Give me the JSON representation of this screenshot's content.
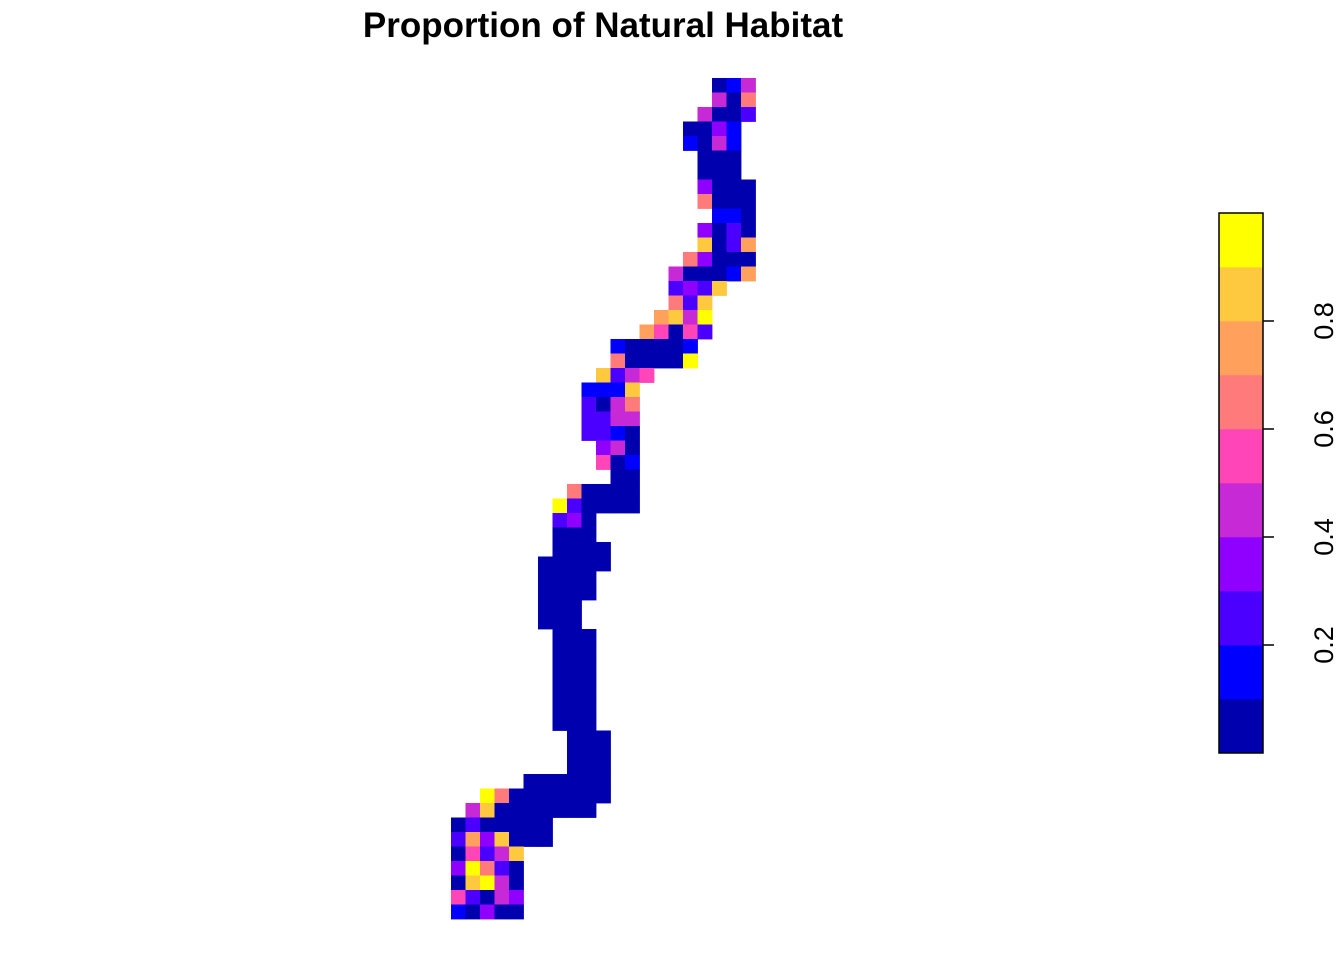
{
  "chart_data": {
    "type": "heatmap",
    "title": "Proportion of Natural Habitat",
    "xlabel": "",
    "ylabel": "",
    "axes_shown": false,
    "legend": {
      "placement": "right",
      "orientation": "vertical",
      "range": [
        0,
        1
      ],
      "ticks": [
        0.2,
        0.4,
        0.6,
        0.8
      ],
      "tick_labels": [
        "0.2",
        "0.4",
        "0.6",
        "0.8"
      ],
      "breaks": [
        0.0,
        0.1,
        0.2,
        0.3,
        0.4,
        0.5,
        0.6,
        0.7,
        0.8,
        0.9,
        1.0
      ],
      "colors": [
        "#0000AE",
        "#0000FF",
        "#4B00FF",
        "#8F00FF",
        "#C729D6",
        "#FF45B8",
        "#FF7A7A",
        "#FFA05C",
        "#FFC93F",
        "#FFFF00"
      ]
    },
    "raster": {
      "origin": "top-left",
      "n_cols": 21,
      "n_rows": 58,
      "cells": [
        [
          18,
          0,
          0.05
        ],
        [
          19,
          0,
          0.15
        ],
        [
          20,
          0,
          0.45
        ],
        [
          18,
          1,
          0.45
        ],
        [
          19,
          1,
          0.05
        ],
        [
          20,
          1,
          0.65
        ],
        [
          17,
          2,
          0.45
        ],
        [
          18,
          2,
          0.05
        ],
        [
          19,
          2,
          0.05
        ],
        [
          20,
          2,
          0.25
        ],
        [
          16,
          3,
          0.05
        ],
        [
          17,
          3,
          0.05
        ],
        [
          18,
          3,
          0.35
        ],
        [
          19,
          3,
          0.15
        ],
        [
          16,
          4,
          0.15
        ],
        [
          17,
          4,
          0.05
        ],
        [
          18,
          4,
          0.45
        ],
        [
          19,
          4,
          0.15
        ],
        [
          17,
          5,
          0.05
        ],
        [
          18,
          5,
          0.05
        ],
        [
          19,
          5,
          0.05
        ],
        [
          17,
          6,
          0.05
        ],
        [
          18,
          6,
          0.05
        ],
        [
          19,
          6,
          0.05
        ],
        [
          17,
          7,
          0.35
        ],
        [
          18,
          7,
          0.05
        ],
        [
          19,
          7,
          0.05
        ],
        [
          20,
          7,
          0.05
        ],
        [
          17,
          8,
          0.65
        ],
        [
          18,
          8,
          0.05
        ],
        [
          19,
          8,
          0.05
        ],
        [
          20,
          8,
          0.05
        ],
        [
          18,
          9,
          0.15
        ],
        [
          19,
          9,
          0.15
        ],
        [
          20,
          9,
          0.05
        ],
        [
          17,
          10,
          0.35
        ],
        [
          18,
          10,
          0.05
        ],
        [
          19,
          10,
          0.25
        ],
        [
          20,
          10,
          0.05
        ],
        [
          17,
          11,
          0.85
        ],
        [
          18,
          11,
          0.05
        ],
        [
          19,
          11,
          0.25
        ],
        [
          20,
          11,
          0.75
        ],
        [
          16,
          12,
          0.65
        ],
        [
          17,
          12,
          0.35
        ],
        [
          18,
          12,
          0.05
        ],
        [
          19,
          12,
          0.05
        ],
        [
          20,
          12,
          0.05
        ],
        [
          15,
          13,
          0.45
        ],
        [
          16,
          13,
          0.05
        ],
        [
          17,
          13,
          0.05
        ],
        [
          18,
          13,
          0.05
        ],
        [
          19,
          13,
          0.15
        ],
        [
          20,
          13,
          0.75
        ],
        [
          15,
          14,
          0.25
        ],
        [
          16,
          14,
          0.35
        ],
        [
          17,
          14,
          0.25
        ],
        [
          18,
          14,
          0.85
        ],
        [
          15,
          15,
          0.65
        ],
        [
          16,
          15,
          0.25
        ],
        [
          17,
          15,
          0.85
        ],
        [
          14,
          16,
          0.75
        ],
        [
          15,
          16,
          0.85
        ],
        [
          16,
          16,
          0.45
        ],
        [
          17,
          16,
          0.95
        ],
        [
          13,
          17,
          0.75
        ],
        [
          14,
          17,
          0.55
        ],
        [
          15,
          17,
          0.05
        ],
        [
          16,
          17,
          0.55
        ],
        [
          17,
          17,
          0.25
        ],
        [
          11,
          18,
          0.15
        ],
        [
          12,
          18,
          0.05
        ],
        [
          13,
          18,
          0.05
        ],
        [
          14,
          18,
          0.05
        ],
        [
          15,
          18,
          0.05
        ],
        [
          16,
          18,
          0.15
        ],
        [
          11,
          19,
          0.65
        ],
        [
          12,
          19,
          0.05
        ],
        [
          13,
          19,
          0.05
        ],
        [
          14,
          19,
          0.05
        ],
        [
          15,
          19,
          0.05
        ],
        [
          16,
          19,
          0.95
        ],
        [
          10,
          20,
          0.85
        ],
        [
          11,
          20,
          0.25
        ],
        [
          12,
          20,
          0.45
        ],
        [
          13,
          20,
          0.55
        ],
        [
          9,
          21,
          0.15
        ],
        [
          10,
          21,
          0.15
        ],
        [
          11,
          21,
          0.15
        ],
        [
          12,
          21,
          0.85
        ],
        [
          9,
          22,
          0.25
        ],
        [
          10,
          22,
          0.05
        ],
        [
          11,
          22,
          0.45
        ],
        [
          12,
          22,
          0.65
        ],
        [
          9,
          23,
          0.25
        ],
        [
          10,
          23,
          0.25
        ],
        [
          11,
          23,
          0.45
        ],
        [
          12,
          23,
          0.45
        ],
        [
          9,
          24,
          0.25
        ],
        [
          10,
          24,
          0.25
        ],
        [
          11,
          24,
          0.15
        ],
        [
          12,
          24,
          0.05
        ],
        [
          10,
          25,
          0.35
        ],
        [
          11,
          25,
          0.45
        ],
        [
          12,
          25,
          0.05
        ],
        [
          10,
          26,
          0.55
        ],
        [
          11,
          26,
          0.05
        ],
        [
          12,
          26,
          0.15
        ],
        [
          11,
          27,
          0.05
        ],
        [
          12,
          27,
          0.05
        ],
        [
          8,
          28,
          0.65
        ],
        [
          9,
          28,
          0.05
        ],
        [
          10,
          28,
          0.05
        ],
        [
          11,
          28,
          0.05
        ],
        [
          12,
          28,
          0.05
        ],
        [
          7,
          29,
          0.95
        ],
        [
          8,
          29,
          0.25
        ],
        [
          9,
          29,
          0.05
        ],
        [
          10,
          29,
          0.05
        ],
        [
          11,
          29,
          0.05
        ],
        [
          12,
          29,
          0.05
        ],
        [
          7,
          30,
          0.25
        ],
        [
          8,
          30,
          0.35
        ],
        [
          9,
          30,
          0.05
        ],
        [
          7,
          31,
          0.05
        ],
        [
          8,
          31,
          0.05
        ],
        [
          9,
          31,
          0.05
        ],
        [
          7,
          32,
          0.05
        ],
        [
          8,
          32,
          0.05
        ],
        [
          9,
          32,
          0.05
        ],
        [
          10,
          32,
          0.05
        ],
        [
          6,
          33,
          0.05
        ],
        [
          7,
          33,
          0.05
        ],
        [
          8,
          33,
          0.05
        ],
        [
          9,
          33,
          0.05
        ],
        [
          10,
          33,
          0.05
        ],
        [
          6,
          34,
          0.05
        ],
        [
          7,
          34,
          0.05
        ],
        [
          8,
          34,
          0.05
        ],
        [
          9,
          34,
          0.05
        ],
        [
          6,
          35,
          0.05
        ],
        [
          7,
          35,
          0.05
        ],
        [
          8,
          35,
          0.05
        ],
        [
          9,
          35,
          0.05
        ],
        [
          6,
          36,
          0.05
        ],
        [
          7,
          36,
          0.05
        ],
        [
          8,
          36,
          0.05
        ],
        [
          6,
          37,
          0.05
        ],
        [
          7,
          37,
          0.05
        ],
        [
          8,
          37,
          0.05
        ],
        [
          7,
          38,
          0.05
        ],
        [
          8,
          38,
          0.05
        ],
        [
          9,
          38,
          0.05
        ],
        [
          7,
          39,
          0.05
        ],
        [
          8,
          39,
          0.05
        ],
        [
          9,
          39,
          0.05
        ],
        [
          7,
          40,
          0.05
        ],
        [
          8,
          40,
          0.05
        ],
        [
          9,
          40,
          0.05
        ],
        [
          7,
          41,
          0.05
        ],
        [
          8,
          41,
          0.05
        ],
        [
          9,
          41,
          0.05
        ],
        [
          7,
          42,
          0.05
        ],
        [
          8,
          42,
          0.05
        ],
        [
          9,
          42,
          0.05
        ],
        [
          7,
          43,
          0.05
        ],
        [
          8,
          43,
          0.05
        ],
        [
          9,
          43,
          0.05
        ],
        [
          7,
          44,
          0.05
        ],
        [
          8,
          44,
          0.05
        ],
        [
          9,
          44,
          0.05
        ],
        [
          8,
          45,
          0.05
        ],
        [
          9,
          45,
          0.05
        ],
        [
          10,
          45,
          0.05
        ],
        [
          8,
          46,
          0.05
        ],
        [
          9,
          46,
          0.05
        ],
        [
          10,
          46,
          0.05
        ],
        [
          8,
          47,
          0.05
        ],
        [
          9,
          47,
          0.05
        ],
        [
          10,
          47,
          0.05
        ],
        [
          5,
          48,
          0.05
        ],
        [
          6,
          48,
          0.05
        ],
        [
          7,
          48,
          0.05
        ],
        [
          8,
          48,
          0.05
        ],
        [
          9,
          48,
          0.05
        ],
        [
          10,
          48,
          0.05
        ],
        [
          2,
          49,
          0.95
        ],
        [
          3,
          49,
          0.65
        ],
        [
          4,
          49,
          0.05
        ],
        [
          5,
          49,
          0.05
        ],
        [
          6,
          49,
          0.05
        ],
        [
          7,
          49,
          0.05
        ],
        [
          8,
          49,
          0.05
        ],
        [
          9,
          49,
          0.05
        ],
        [
          10,
          49,
          0.05
        ],
        [
          1,
          50,
          0.45
        ],
        [
          2,
          50,
          0.85
        ],
        [
          3,
          50,
          0.05
        ],
        [
          4,
          50,
          0.05
        ],
        [
          5,
          50,
          0.05
        ],
        [
          6,
          50,
          0.05
        ],
        [
          7,
          50,
          0.05
        ],
        [
          8,
          50,
          0.05
        ],
        [
          9,
          50,
          0.05
        ],
        [
          0,
          51,
          0.05
        ],
        [
          1,
          51,
          0.25
        ],
        [
          2,
          51,
          0.05
        ],
        [
          3,
          51,
          0.05
        ],
        [
          4,
          51,
          0.05
        ],
        [
          5,
          51,
          0.05
        ],
        [
          6,
          51,
          0.05
        ],
        [
          0,
          52,
          0.25
        ],
        [
          1,
          52,
          0.75
        ],
        [
          2,
          52,
          0.35
        ],
        [
          3,
          52,
          0.85
        ],
        [
          4,
          52,
          0.05
        ],
        [
          5,
          52,
          0.05
        ],
        [
          6,
          52,
          0.05
        ],
        [
          0,
          53,
          0.05
        ],
        [
          1,
          53,
          0.55
        ],
        [
          2,
          53,
          0.25
        ],
        [
          3,
          53,
          0.45
        ],
        [
          4,
          53,
          0.85
        ],
        [
          0,
          54,
          0.35
        ],
        [
          1,
          54,
          0.95
        ],
        [
          2,
          54,
          0.65
        ],
        [
          3,
          54,
          0.25
        ],
        [
          4,
          54,
          0.05
        ],
        [
          0,
          55,
          0.05
        ],
        [
          1,
          55,
          0.85
        ],
        [
          2,
          55,
          0.95
        ],
        [
          3,
          55,
          0.45
        ],
        [
          4,
          55,
          0.05
        ],
        [
          0,
          56,
          0.55
        ],
        [
          1,
          56,
          0.25
        ],
        [
          2,
          56,
          0.05
        ],
        [
          3,
          56,
          0.45
        ],
        [
          4,
          56,
          0.35
        ],
        [
          0,
          57,
          0.15
        ],
        [
          1,
          57,
          0.05
        ],
        [
          2,
          57,
          0.35
        ],
        [
          3,
          57,
          0.05
        ],
        [
          4,
          57,
          0.05
        ]
      ]
    }
  }
}
